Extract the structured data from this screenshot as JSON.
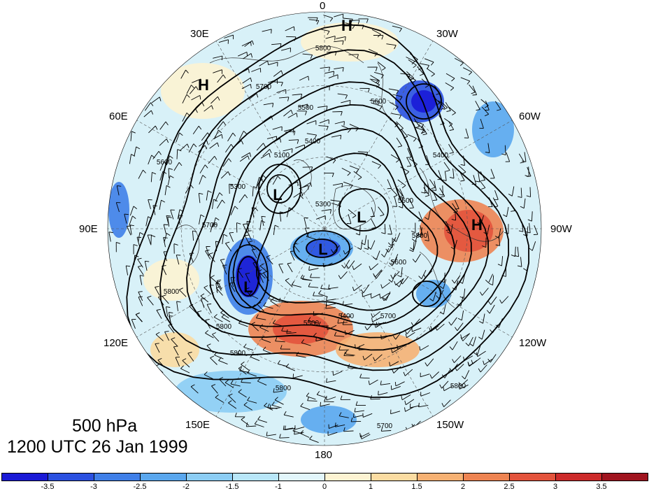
{
  "caption": {
    "level": "500 hPa",
    "time": "1200 UTC 26 Jan 1999"
  },
  "longitude_labels": [
    "0",
    "30W",
    "60W",
    "90W",
    "120W",
    "150W",
    "180",
    "150E",
    "120E",
    "90E",
    "60E",
    "30E"
  ],
  "pressure_centers": [
    {
      "type": "H",
      "name": "high-north-atlantic"
    },
    {
      "type": "H",
      "name": "high-europe"
    },
    {
      "type": "H",
      "name": "high-north-america"
    },
    {
      "type": "L",
      "name": "low-siberia"
    },
    {
      "type": "L",
      "name": "low-pole"
    },
    {
      "type": "L",
      "name": "low-canada"
    },
    {
      "type": "L",
      "name": "low-east-asia"
    }
  ],
  "contour_labels": [
    "5800",
    "5700",
    "5600",
    "5500",
    "5400",
    "5100",
    "5300",
    "5300",
    "5400",
    "5500",
    "5700",
    "5800",
    "5600",
    "5500",
    "5400",
    "5700",
    "5800",
    "5800",
    "5600",
    "5800",
    "5800",
    "5700",
    "5800"
  ],
  "colorbar": {
    "tick_labels": [
      "-3.5",
      "-3",
      "-2.5",
      "-2",
      "-1.5",
      "-1",
      "0",
      "1",
      "1.5",
      "2",
      "2.5",
      "3",
      "3.5"
    ],
    "colors": [
      "#1a1ad6",
      "#2a50e0",
      "#3f7fe8",
      "#5aa7ee",
      "#8ccdf4",
      "#b8e6f8",
      "#e2f6fb",
      "#fdf3d2",
      "#fbdca2",
      "#f6b173",
      "#ee8452",
      "#e3533c",
      "#cc2a2a",
      "#a0141f"
    ]
  }
}
